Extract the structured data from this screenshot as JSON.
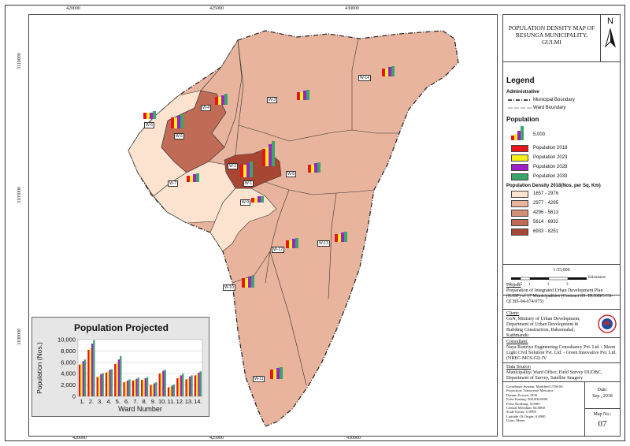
{
  "title": "POPULATION DENSITY MAP OF RESUNGA MUNICIPALITY, GULMI",
  "north_label": "N",
  "coords": {
    "top": [
      "420000",
      "425000",
      "430000"
    ],
    "bottom": [
      "420000",
      "425000",
      "430000"
    ],
    "left": [
      "3110000",
      "3105000",
      "3100000"
    ],
    "right": [
      "3110000",
      "3105000",
      "3100000"
    ]
  },
  "wards": [
    "W-1",
    "W-2",
    "W-3",
    "W-4",
    "W-5",
    "W-6",
    "W-7",
    "W-8",
    "W-9",
    "W-10",
    "W-11",
    "W-12",
    "W-13",
    "W-14"
  ],
  "legend": {
    "title": "Legend",
    "administrative": "Administrative",
    "municipal_boundary": "Municipal Boundary",
    "ward_boundary": "Ward Boundary",
    "population_heading": "Population",
    "population_scale": "5,000",
    "series": [
      {
        "label": "Population 2018",
        "color": "#e8141c"
      },
      {
        "label": "Population 2023",
        "color": "#f5f01a"
      },
      {
        "label": "Population 2028",
        "color": "#a020c8"
      },
      {
        "label": "Population 2033",
        "color": "#3aa66a"
      }
    ],
    "density_heading": "Population Density 2018(Nos. per Sq. Km)",
    "density_classes": [
      {
        "label": "1657 - 2976",
        "color": "#fbe3cf"
      },
      {
        "label": "2977 - 4295",
        "color": "#e9b49d"
      },
      {
        "label": "4296 - 5613",
        "color": "#d28e76"
      },
      {
        "label": "5614 - 6932",
        "color": "#bf6b55"
      },
      {
        "label": "6933 - 8251",
        "color": "#a84634"
      }
    ]
  },
  "scale": {
    "ratio": "1:55,000",
    "unit": "Kilometers",
    "ticks": [
      "0",
      "0.5",
      "1",
      "2",
      "3"
    ]
  },
  "project": {
    "heading": "Project:",
    "text": "Preparation of Integrated Urban Development Plan (IUDP) of 17 Municipalities (Contract ID: DUDBC/CS-QCBS-04-074/075)"
  },
  "client": {
    "heading": "Client:",
    "text": "GoN, Ministry of Urban Development, Department of Urban Development & Building Construction, Babarmahal, Kathmandu"
  },
  "consultant": {
    "heading": "Consultant:",
    "text": "Naya Rastriya Engineering Consultancy Pvt. Ltd. - Moon Light Civil Solution Pvt. Ltd. - Green Innovative Pvt. Ltd. (NREC-MCS-GI) JV"
  },
  "data_source": {
    "heading": "Data Source:",
    "text": "Municipality/ Ward Office, Field Survey DUDBC, Department of Survey, Satellite Imagery"
  },
  "projection_info": [
    "Coordinate System: Modified UTM 84",
    "Projection: Transverse Mercator",
    "Datum: Everest 1830",
    "False Easting: 500,000.0000",
    "False Northing: 0.0000",
    "Central Meridian: 84.0000",
    "Scale Factor: 0.9999",
    "Latitude Of Origin: 0.0000",
    "Units: Meter"
  ],
  "date_label": "Date:",
  "date_value": "Sep., 2018",
  "map_no_label": "Map No.:",
  "map_no_value": "07",
  "chart_data": {
    "type": "bar",
    "title": "Population Projected",
    "xlabel": "Ward Number",
    "ylabel": "Population (Nos.)",
    "ylim": [
      0,
      10000
    ],
    "yticks": [
      "0",
      "2,000",
      "4,000",
      "6,000",
      "8,000",
      "10,000"
    ],
    "categories": [
      "1.",
      "2.",
      "3.",
      "4.",
      "5.",
      "6.",
      "7.",
      "8.",
      "9.",
      "10.",
      "11.",
      "12.",
      "13.",
      "14."
    ],
    "series": [
      {
        "name": "Population 2018",
        "color": "#e8141c",
        "values": [
          5600,
          8200,
          3400,
          4200,
          5700,
          2500,
          2800,
          2900,
          2000,
          4000,
          1600,
          3200,
          3000,
          3700
        ]
      },
      {
        "name": "Population 2023",
        "color": "#f5f01a",
        "values": [
          5800,
          8500,
          3600,
          4400,
          5900,
          2600,
          2900,
          3000,
          2100,
          4200,
          1700,
          3400,
          3200,
          3900
        ]
      },
      {
        "name": "Population 2028",
        "color": "#a020c8",
        "values": [
          6200,
          9300,
          3900,
          4700,
          6500,
          2800,
          3100,
          3200,
          2300,
          4500,
          1900,
          3700,
          3500,
          4200
        ]
      },
      {
        "name": "Population 2033",
        "color": "#3aa66a",
        "values": [
          6500,
          9900,
          4100,
          4800,
          7100,
          3000,
          3300,
          3400,
          2500,
          4700,
          2100,
          4000,
          3700,
          4400
        ]
      }
    ]
  }
}
